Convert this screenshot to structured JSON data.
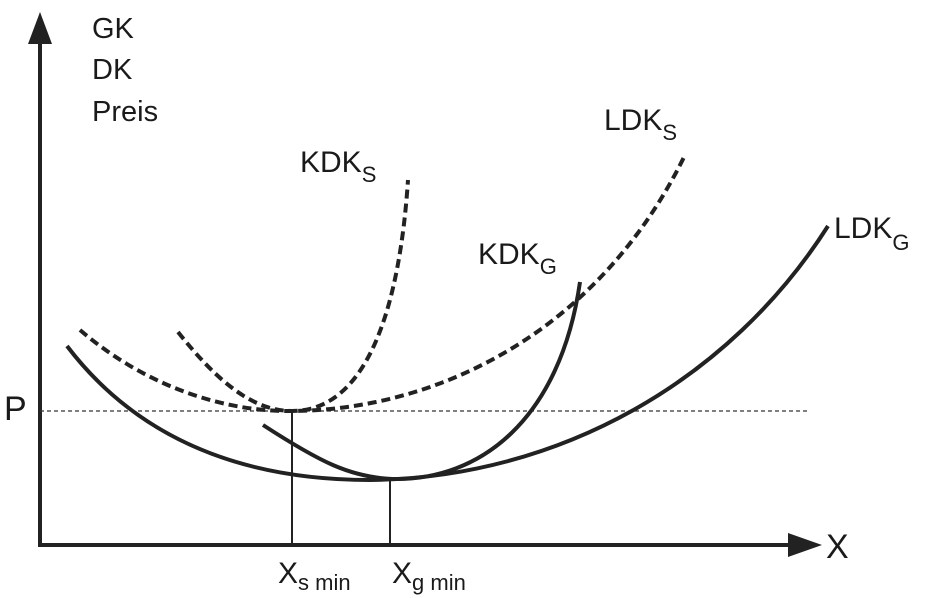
{
  "y_axis": {
    "labels": [
      "GK",
      "DK",
      "Preis"
    ]
  },
  "x_axis": {
    "label": "X"
  },
  "price_label": "P",
  "curves": {
    "kdk_s": {
      "main": "KDK",
      "sub": "S",
      "style": "dashed"
    },
    "ldk_s": {
      "main": "LDK",
      "sub": "S",
      "style": "dashed"
    },
    "kdk_g": {
      "main": "KDK",
      "sub": "G",
      "style": "solid"
    },
    "ldk_g": {
      "main": "LDK",
      "sub": "G",
      "style": "solid"
    }
  },
  "x_marks": {
    "xs_min": {
      "main": "X",
      "sub": "s min"
    },
    "xg_min": {
      "main": "X",
      "sub": "g min"
    }
  },
  "colors": {
    "ink": "#222222",
    "background": "#ffffff"
  }
}
